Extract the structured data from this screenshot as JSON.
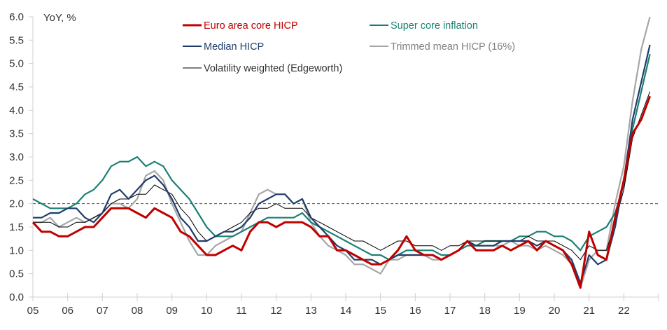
{
  "chart_data": {
    "type": "line",
    "title": "",
    "ylabel": "YoY, %",
    "xlabel": "",
    "ylim": [
      0,
      6
    ],
    "xlim": [
      2005,
      2023
    ],
    "yticks": [
      "0.0",
      "0.5",
      "1.0",
      "1.5",
      "2.0",
      "2.5",
      "3.0",
      "3.5",
      "4.0",
      "4.5",
      "5.0",
      "5.5",
      "6.0"
    ],
    "ytick_values": [
      0,
      0.5,
      1,
      1.5,
      2,
      2.5,
      3,
      3.5,
      4,
      4.5,
      5,
      5.5,
      6
    ],
    "xticks": [
      "05",
      "06",
      "07",
      "08",
      "09",
      "10",
      "11",
      "12",
      "13",
      "14",
      "15",
      "16",
      "17",
      "18",
      "19",
      "20",
      "21",
      "22"
    ],
    "xtick_values": [
      2005,
      2006,
      2007,
      2008,
      2009,
      2010,
      2011,
      2012,
      2013,
      2014,
      2015,
      2016,
      2017,
      2018,
      2019,
      2020,
      2021,
      2022
    ],
    "reference_line": {
      "value": 2.0,
      "style": "dashed",
      "color": "#555555"
    },
    "legend_position": "top-center",
    "x": [
      2005.0,
      2005.25,
      2005.5,
      2005.75,
      2006.0,
      2006.25,
      2006.5,
      2006.75,
      2007.0,
      2007.25,
      2007.5,
      2007.75,
      2008.0,
      2008.25,
      2008.5,
      2008.75,
      2009.0,
      2009.25,
      2009.5,
      2009.75,
      2010.0,
      2010.25,
      2010.5,
      2010.75,
      2011.0,
      2011.25,
      2011.5,
      2011.75,
      2012.0,
      2012.25,
      2012.5,
      2012.75,
      2013.0,
      2013.25,
      2013.5,
      2013.75,
      2014.0,
      2014.25,
      2014.5,
      2014.75,
      2015.0,
      2015.25,
      2015.5,
      2015.75,
      2016.0,
      2016.25,
      2016.5,
      2016.75,
      2017.0,
      2017.25,
      2017.5,
      2017.75,
      2018.0,
      2018.25,
      2018.5,
      2018.75,
      2019.0,
      2019.25,
      2019.5,
      2019.75,
      2020.0,
      2020.25,
      2020.5,
      2020.75,
      2021.0,
      2021.25,
      2021.5,
      2021.75,
      2022.0,
      2022.25,
      2022.5,
      2022.75
    ],
    "series": [
      {
        "name": "Euro area core HICP",
        "color": "#C00000",
        "width": 3,
        "values": [
          1.6,
          1.4,
          1.4,
          1.3,
          1.3,
          1.4,
          1.5,
          1.5,
          1.7,
          1.9,
          1.9,
          1.9,
          1.8,
          1.7,
          1.9,
          1.8,
          1.7,
          1.4,
          1.3,
          1.1,
          0.9,
          0.9,
          1.0,
          1.1,
          1.0,
          1.4,
          1.6,
          1.6,
          1.5,
          1.6,
          1.6,
          1.6,
          1.5,
          1.3,
          1.3,
          1.0,
          1.0,
          0.9,
          0.8,
          0.7,
          0.7,
          0.8,
          1.0,
          1.3,
          1.0,
          0.9,
          0.9,
          0.8,
          0.9,
          1.0,
          1.2,
          1.0,
          1.0,
          1.0,
          1.1,
          1.0,
          1.1,
          1.2,
          1.0,
          1.2,
          1.1,
          1.0,
          0.7,
          0.2,
          1.4,
          0.9,
          0.8,
          1.7,
          2.5,
          3.5,
          3.8,
          4.3
        ]
      },
      {
        "name": "Super core inflation",
        "color": "#1A8073",
        "width": 2.2,
        "values": [
          2.1,
          2.0,
          1.9,
          1.9,
          1.9,
          2.0,
          2.2,
          2.3,
          2.5,
          2.8,
          2.9,
          2.9,
          3.0,
          2.8,
          2.9,
          2.8,
          2.5,
          2.3,
          2.1,
          1.8,
          1.5,
          1.3,
          1.3,
          1.3,
          1.4,
          1.5,
          1.6,
          1.7,
          1.7,
          1.7,
          1.7,
          1.8,
          1.6,
          1.5,
          1.4,
          1.3,
          1.2,
          1.1,
          1.0,
          0.9,
          0.9,
          0.8,
          0.9,
          1.0,
          1.0,
          1.0,
          1.0,
          0.9,
          0.9,
          1.0,
          1.1,
          1.1,
          1.2,
          1.2,
          1.2,
          1.2,
          1.3,
          1.3,
          1.4,
          1.4,
          1.3,
          1.3,
          1.2,
          1.0,
          1.3,
          1.4,
          1.5,
          1.8,
          2.4,
          3.6,
          4.4,
          5.2
        ]
      },
      {
        "name": "Median HICP",
        "color": "#1F3D6B",
        "width": 2.2,
        "values": [
          1.7,
          1.7,
          1.8,
          1.8,
          1.9,
          1.9,
          1.7,
          1.6,
          1.8,
          2.2,
          2.3,
          2.1,
          2.3,
          2.5,
          2.6,
          2.4,
          2.1,
          1.7,
          1.5,
          1.2,
          1.2,
          1.3,
          1.4,
          1.4,
          1.5,
          1.7,
          2.0,
          2.1,
          2.2,
          2.2,
          2.0,
          2.1,
          1.7,
          1.5,
          1.3,
          1.1,
          1.0,
          0.8,
          0.8,
          0.8,
          0.7,
          0.8,
          0.9,
          0.9,
          0.9,
          0.9,
          0.9,
          0.8,
          0.9,
          1.0,
          1.2,
          1.1,
          1.1,
          1.1,
          1.2,
          1.2,
          1.2,
          1.2,
          1.1,
          1.2,
          1.1,
          1.0,
          0.8,
          0.3,
          0.9,
          0.7,
          0.8,
          1.5,
          2.5,
          3.8,
          4.6,
          5.4
        ]
      },
      {
        "name": "Trimmed mean HICP (16%)",
        "color": "#A6A6A6",
        "width": 2.2,
        "values": [
          1.6,
          1.6,
          1.7,
          1.5,
          1.6,
          1.7,
          1.6,
          1.7,
          1.8,
          2.0,
          2.0,
          1.9,
          2.1,
          2.6,
          2.7,
          2.5,
          2.0,
          1.6,
          1.2,
          0.9,
          0.9,
          1.1,
          1.2,
          1.3,
          1.4,
          1.8,
          2.2,
          2.3,
          2.2,
          2.2,
          2.0,
          2.1,
          1.6,
          1.3,
          1.1,
          1.0,
          0.9,
          0.7,
          0.7,
          0.6,
          0.5,
          0.8,
          0.8,
          0.9,
          0.9,
          0.9,
          0.8,
          0.8,
          0.9,
          1.0,
          1.2,
          1.1,
          1.1,
          1.1,
          1.1,
          1.2,
          1.1,
          1.1,
          1.0,
          1.1,
          1.0,
          0.9,
          0.7,
          0.2,
          0.8,
          1.0,
          1.0,
          2.0,
          2.8,
          4.2,
          5.3,
          6.0
        ]
      },
      {
        "name": "Volatility weighted (Edgeworth)",
        "color": "#000000",
        "width": 1,
        "values": [
          1.6,
          1.6,
          1.6,
          1.5,
          1.5,
          1.6,
          1.6,
          1.7,
          1.8,
          2.0,
          2.1,
          2.1,
          2.2,
          2.2,
          2.4,
          2.3,
          2.2,
          1.9,
          1.7,
          1.4,
          1.2,
          1.3,
          1.4,
          1.5,
          1.6,
          1.8,
          1.9,
          1.9,
          2.0,
          1.9,
          1.9,
          1.9,
          1.7,
          1.6,
          1.5,
          1.4,
          1.3,
          1.2,
          1.2,
          1.1,
          1.0,
          1.1,
          1.2,
          1.2,
          1.1,
          1.1,
          1.1,
          1.0,
          1.1,
          1.1,
          1.2,
          1.2,
          1.2,
          1.2,
          1.2,
          1.2,
          1.2,
          1.3,
          1.2,
          1.2,
          1.2,
          1.1,
          1.0,
          0.8,
          1.1,
          1.0,
          1.0,
          1.6,
          2.3,
          3.4,
          3.9,
          4.4
        ]
      }
    ]
  }
}
